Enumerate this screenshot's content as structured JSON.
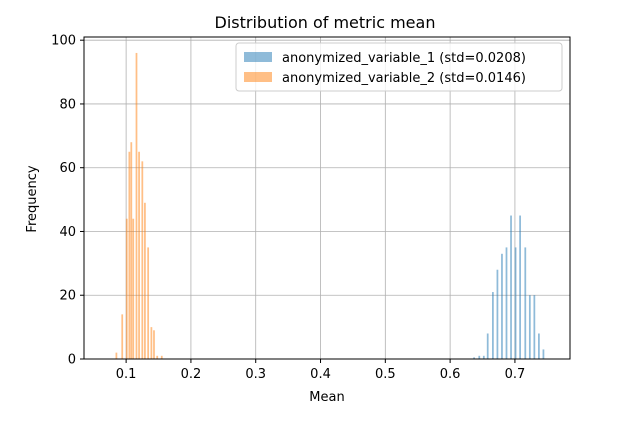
{
  "chart_data": {
    "type": "bar",
    "title": "Distribution of metric mean",
    "xlabel": "Mean",
    "ylabel": "Frequency",
    "xlim": [
      0.035,
      0.785
    ],
    "ylim": [
      0,
      101
    ],
    "xticks": [
      0.1,
      0.2,
      0.3,
      0.4,
      0.5,
      0.6,
      0.7
    ],
    "xtick_labels": [
      "0.1",
      "0.2",
      "0.3",
      "0.4",
      "0.5",
      "0.6",
      "0.7"
    ],
    "yticks": [
      0,
      20,
      40,
      60,
      80,
      100
    ],
    "ytick_labels": [
      "0",
      "20",
      "40",
      "60",
      "80",
      "100"
    ],
    "grid": true,
    "legend_position": "upper-right",
    "bar_width": 0.0027,
    "series": [
      {
        "name": "anonymized_variable_1 (std=0.0208)",
        "color": "#1f77b4",
        "x": [
          0.637,
          0.645,
          0.652,
          0.658,
          0.666,
          0.673,
          0.68,
          0.687,
          0.694,
          0.701,
          0.708,
          0.716,
          0.723,
          0.73,
          0.737,
          0.744
        ],
        "values": [
          0.5,
          1,
          1,
          8,
          21,
          28,
          33,
          35,
          45,
          35,
          45,
          35,
          20,
          20,
          8,
          3
        ]
      },
      {
        "name": "anonymized_variable_2 (std=0.0146)",
        "color": "#ff7f0e",
        "x": [
          0.085,
          0.094,
          0.101,
          0.105,
          0.108,
          0.111,
          0.116,
          0.12,
          0.125,
          0.129,
          0.134,
          0.139,
          0.143,
          0.148,
          0.155
        ],
        "values": [
          2,
          14,
          44,
          65,
          68,
          44,
          96,
          65,
          62,
          49,
          35,
          10,
          9,
          1,
          1
        ]
      }
    ]
  }
}
